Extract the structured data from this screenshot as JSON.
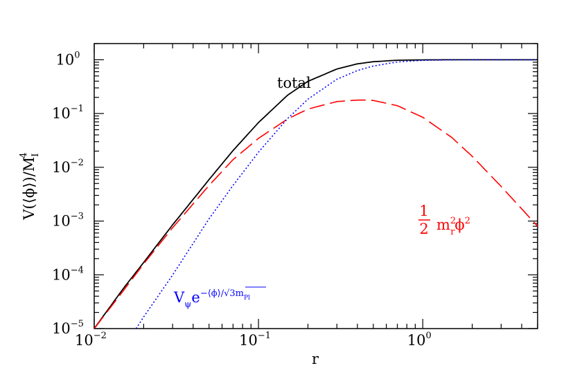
{
  "chart_data": {
    "type": "line",
    "xscale": "log",
    "yscale": "log",
    "xlim": [
      0.01,
      5
    ],
    "ylim": [
      1e-05,
      2
    ],
    "xlabel": "r",
    "ylabel": "V(⟨ϕ⟩)/M_I^4",
    "x_ticks": [
      {
        "base": "10",
        "exp": "−2",
        "value": 0.01
      },
      {
        "base": "10",
        "exp": "−1",
        "value": 0.1
      },
      {
        "base": "10",
        "exp": "0",
        "value": 1
      }
    ],
    "y_ticks": [
      {
        "base": "10",
        "exp": "−5",
        "value": 1e-05
      },
      {
        "base": "10",
        "exp": "−4",
        "value": 0.0001
      },
      {
        "base": "10",
        "exp": "−3",
        "value": 0.001
      },
      {
        "base": "10",
        "exp": "−2",
        "value": 0.01
      },
      {
        "base": "10",
        "exp": "−1",
        "value": 0.1
      },
      {
        "base": "10",
        "exp": "0",
        "value": 1
      }
    ],
    "annotations": {
      "total": "total",
      "quadratic_num": "1",
      "quadratic_den": "2",
      "quadratic_m": "m",
      "quadratic_sup": "2",
      "quadratic_sub": "r",
      "quadratic_phi": "ϕ",
      "quadratic_phi_sup": "2",
      "exp_V": "V",
      "exp_V_sub": "ψ",
      "exp_e": "e",
      "exp_power": "−⟨ϕ⟩/√3m",
      "exp_power_sub": "Pl"
    },
    "series": [
      {
        "name": "total",
        "color": "#000000",
        "style": "solid",
        "x": [
          0.01,
          0.015,
          0.02,
          0.03,
          0.05,
          0.07,
          0.1,
          0.15,
          0.2,
          0.3,
          0.4,
          0.5,
          0.7,
          1.0,
          1.5,
          2,
          3,
          5
        ],
        "y": [
          1e-05,
          5.5e-05,
          0.00017,
          0.00085,
          0.0059,
          0.0205,
          0.068,
          0.218,
          0.397,
          0.673,
          0.84,
          0.92,
          0.98,
          0.995,
          1.0,
          1.0,
          1.0,
          1.0
        ]
      },
      {
        "name": "1/2 m_r^2 ϕ^2",
        "color": "#ff0000",
        "style": "dashed",
        "x": [
          0.01,
          0.015,
          0.02,
          0.03,
          0.05,
          0.07,
          0.1,
          0.15,
          0.2,
          0.3,
          0.4,
          0.45,
          0.5,
          0.7,
          1.0,
          1.5,
          2,
          3,
          5
        ],
        "y": [
          1e-05,
          5e-05,
          0.00016,
          0.00075,
          0.0046,
          0.0139,
          0.0345,
          0.079,
          0.121,
          0.167,
          0.178,
          0.178,
          0.175,
          0.14,
          0.085,
          0.036,
          0.016,
          0.0044,
          0.0008
        ]
      },
      {
        "name": "V_ψ e^{−⟨ϕ⟩/√3 m_Pl}",
        "color": "#0000ff",
        "style": "dotted",
        "x": [
          0.018,
          0.02,
          0.03,
          0.05,
          0.07,
          0.1,
          0.15,
          0.2,
          0.3,
          0.4,
          0.5,
          0.7,
          1.0,
          1.5,
          2,
          3,
          5
        ],
        "y": [
          1e-05,
          1.65e-05,
          9.9e-05,
          0.0011,
          0.0046,
          0.0191,
          0.08,
          0.185,
          0.434,
          0.63,
          0.765,
          0.91,
          0.975,
          0.995,
          1.0,
          1.0,
          1.0
        ]
      }
    ]
  }
}
